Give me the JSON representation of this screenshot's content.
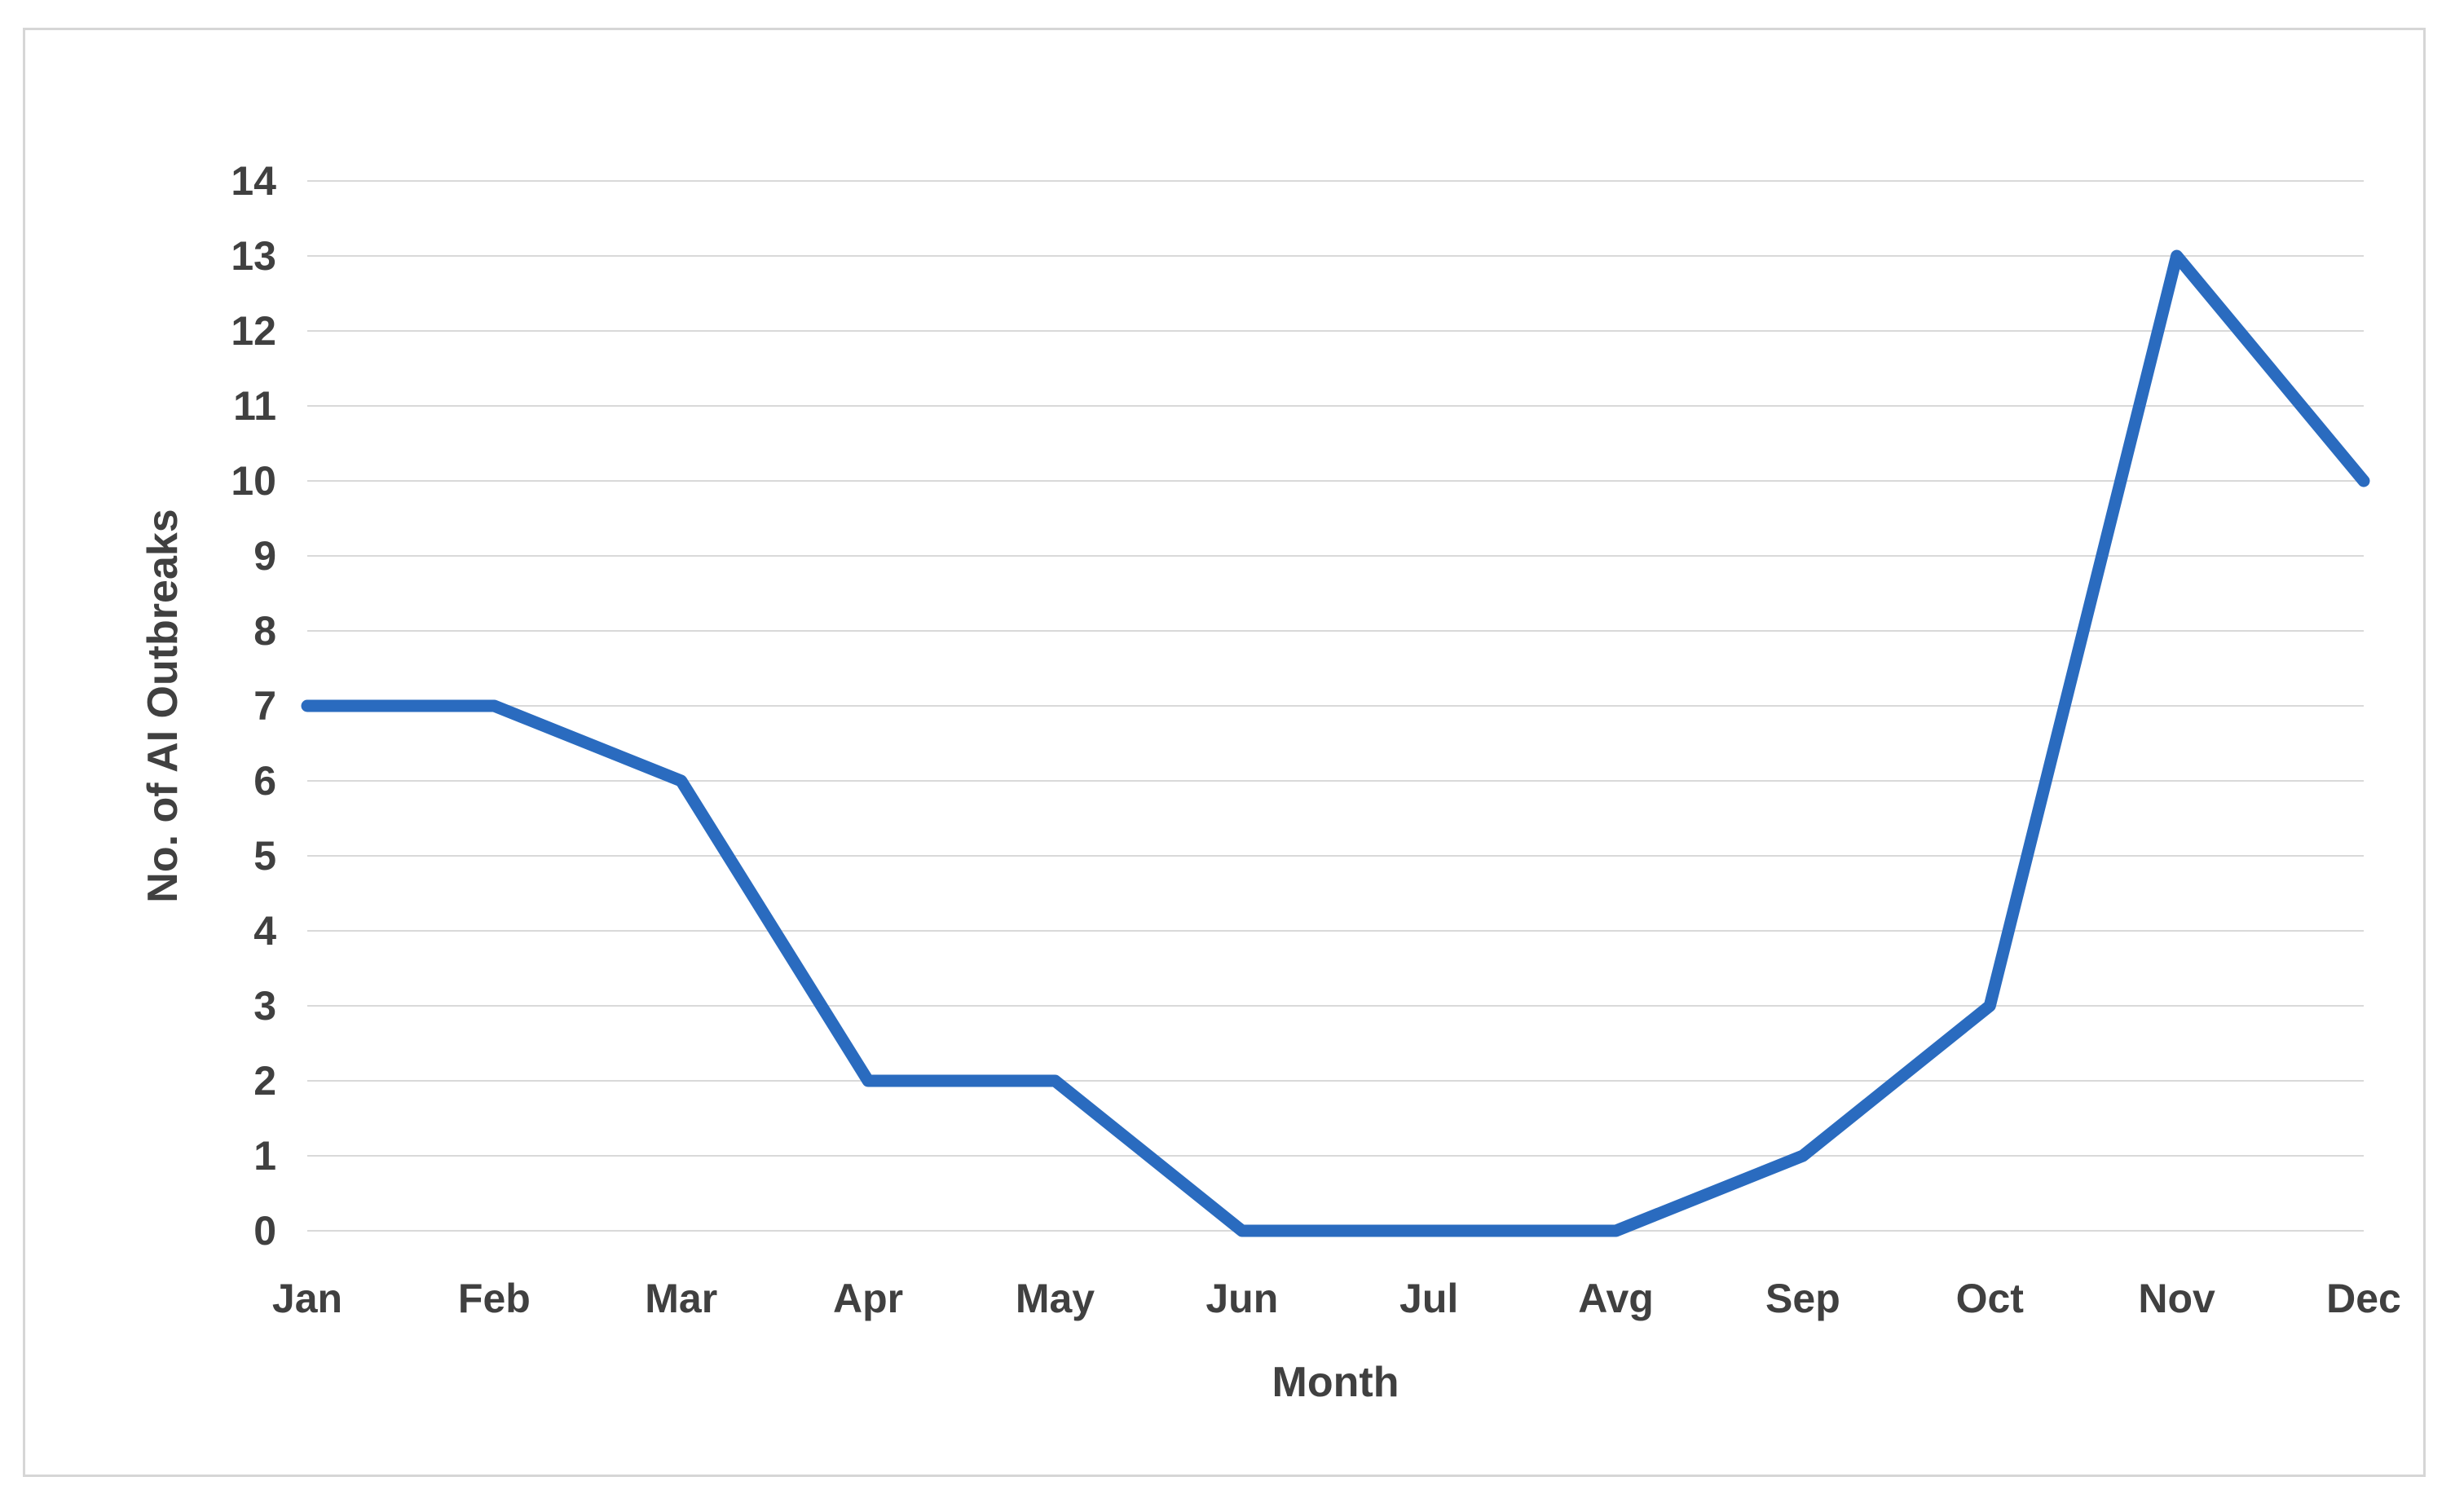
{
  "chart_data": {
    "type": "line",
    "title": "",
    "xlabel": "Month",
    "ylabel": "No. of AI Outbreaks",
    "categories": [
      "Jan",
      "Feb",
      "Mar",
      "Apr",
      "May",
      "Jun",
      "Jul",
      "Avg",
      "Sep",
      "Oct",
      "Nov",
      "Dec"
    ],
    "values": [
      7,
      7,
      6,
      2,
      2,
      0,
      0,
      0,
      1,
      3,
      13,
      10
    ],
    "ylim": [
      0,
      14
    ],
    "yticks": [
      0,
      1,
      2,
      3,
      4,
      5,
      6,
      7,
      8,
      9,
      10,
      11,
      12,
      13,
      14
    ],
    "grid": "horizontal",
    "legend": "none",
    "colors": {
      "line": "#2a6bbf",
      "gridline": "#d9d9d9",
      "axis_text": "#404040",
      "frame_border": "#d6d6d6",
      "background": "#ffffff"
    }
  }
}
